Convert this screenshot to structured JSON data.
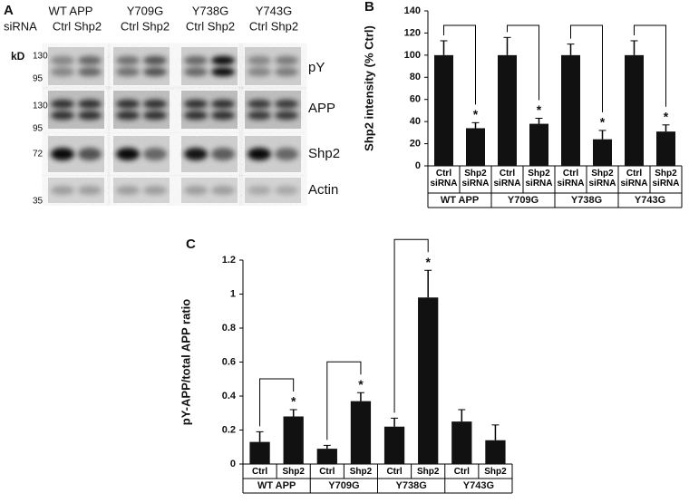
{
  "panel_a": {
    "panel_label": "A",
    "groups": [
      "WT APP",
      "Y709G",
      "Y738G",
      "Y743G"
    ],
    "sirna_label": "siRNA",
    "lane_labels": [
      "Ctrl Shp2",
      "Ctrl Shp2",
      "Ctrl Shp2",
      "Ctrl Shp2"
    ],
    "kd_label": "kD",
    "mw_markers": [
      "130",
      "95",
      "130",
      "95",
      "72",
      "35"
    ],
    "row_labels": [
      "pY",
      "APP",
      "Shp2",
      "Actin"
    ]
  },
  "chart_data": [
    {
      "type": "bar",
      "panel_label": "B",
      "ylabel": "Shp2 intensity (% Ctrl)",
      "categories": [
        "Ctrl\nsiRNA",
        "Shp2\nsiRNA",
        "Ctrl\nsiRNA",
        "Shp2\nsiRNA",
        "Ctrl\nsiRNA",
        "Shp2\nsiRNA",
        "Ctrl\nsiRNA",
        "Shp2\nsiRNA"
      ],
      "groups": [
        "WT APP",
        "Y709G",
        "Y738G",
        "Y743G"
      ],
      "values": [
        100,
        34,
        100,
        38,
        100,
        24,
        100,
        31
      ],
      "errors": [
        13,
        5,
        16,
        5,
        10,
        8,
        13,
        6
      ],
      "annotations": [
        null,
        "*",
        null,
        "*",
        null,
        "*",
        null,
        "*"
      ],
      "color": "#111111",
      "ylim": [
        0,
        140
      ],
      "yticks": [
        0,
        20,
        40,
        60,
        80,
        100,
        120,
        140
      ]
    },
    {
      "type": "bar",
      "panel_label": "C",
      "ylabel": "pY-APP/total APP ratio",
      "categories": [
        "Ctrl",
        "Shp2",
        "Ctrl",
        "Shp2",
        "Ctrl",
        "Shp2",
        "Ctrl",
        "Shp2"
      ],
      "groups": [
        "WT APP",
        "Y709G",
        "Y738G",
        "Y743G"
      ],
      "values": [
        0.13,
        0.28,
        0.09,
        0.37,
        0.22,
        0.98,
        0.25,
        0.14
      ],
      "errors": [
        0.06,
        0.04,
        0.02,
        0.05,
        0.05,
        0.16,
        0.07,
        0.09
      ],
      "annotations": [
        null,
        "*",
        null,
        "*",
        null,
        "*",
        null,
        null
      ],
      "color": "#111111",
      "ylim": [
        0,
        1.2
      ],
      "yticks": [
        0,
        0.2,
        0.4,
        0.6,
        0.8,
        1,
        1.2
      ]
    }
  ]
}
